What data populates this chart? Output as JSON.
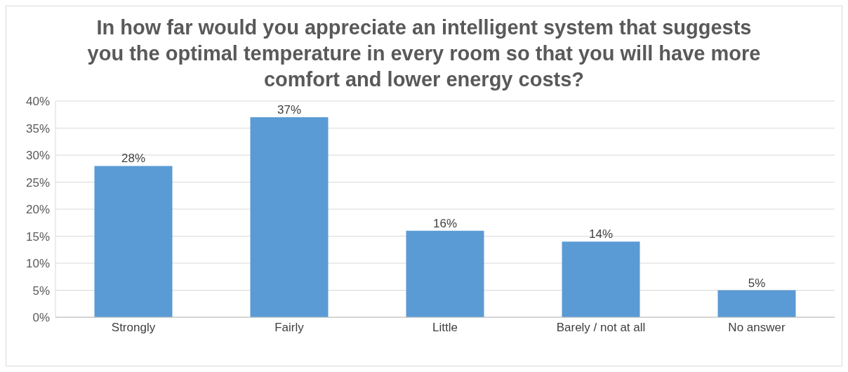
{
  "chart_data": {
    "type": "bar",
    "title": "In how far would you appreciate an intelligent system that suggests you the optimal temperature in every room so that you will have more comfort and lower energy costs?",
    "categories": [
      "Strongly",
      "Fairly",
      "Little",
      "Barely / not at all",
      "No answer"
    ],
    "values": [
      28,
      37,
      16,
      14,
      5
    ],
    "value_labels": [
      "28%",
      "37%",
      "16%",
      "14%",
      "5%"
    ],
    "color": "#5b9bd5",
    "ylim": [
      0,
      40
    ],
    "yticks": [
      {
        "value": 0,
        "label": "0%"
      },
      {
        "value": 5,
        "label": "5%"
      },
      {
        "value": 10,
        "label": "10%"
      },
      {
        "value": 15,
        "label": "15%"
      },
      {
        "value": 20,
        "label": "20%"
      },
      {
        "value": 25,
        "label": "25%"
      },
      {
        "value": 30,
        "label": "30%"
      },
      {
        "value": 35,
        "label": "35%"
      },
      {
        "value": 40,
        "label": "40%"
      }
    ],
    "grid": "y",
    "legend": false
  }
}
